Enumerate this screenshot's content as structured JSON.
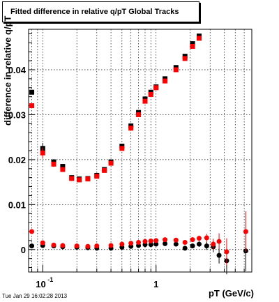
{
  "title": "Fitted difference in relative q/pT  Global Tracks",
  "footer": "Tue Jan 29 16:02:28 2013",
  "chart_data": {
    "type": "scatter",
    "title": "Fitted difference in relative q/pT  Global Tracks",
    "xlabel": "pT (GeV/c)",
    "ylabel": "difference in relative q/pT",
    "x_scale": "log",
    "xlim": [
      0.075,
      7.0
    ],
    "ylim": [
      -0.005,
      0.049
    ],
    "x_ticks": [
      {
        "value": 0.1,
        "base": "10",
        "exp": "-1"
      },
      {
        "value": 1,
        "label": "1"
      }
    ],
    "y_ticks": [
      0,
      0.01,
      0.02,
      0.03,
      0.04
    ],
    "grid": true,
    "legend": "none",
    "series": [
      {
        "color": "#000000",
        "marker": "square",
        "x": [
          0.08,
          0.1,
          0.125,
          0.15,
          0.18,
          0.21,
          0.25,
          0.3,
          0.35,
          0.4,
          0.5,
          0.6,
          0.7,
          0.8,
          0.9,
          1.0,
          1.2,
          1.5,
          1.8,
          2.1,
          2.4
        ],
        "y": [
          0.035,
          0.0225,
          0.0195,
          0.0185,
          0.016,
          0.0157,
          0.0158,
          0.0165,
          0.0178,
          0.0195,
          0.023,
          0.0275,
          0.0305,
          0.0335,
          0.035,
          0.0362,
          0.038,
          0.0405,
          0.043,
          0.0458,
          0.0475
        ],
        "yerr": [
          0.0004,
          0.0012,
          0.0006,
          0.0005,
          0.0004,
          0.0003,
          0.0003,
          0.0003,
          0.0003,
          0.0003,
          0.0003,
          0.0003,
          0.0003,
          0.0003,
          0.0003,
          0.0003,
          0.0003,
          0.0004,
          0.0004,
          0.0005,
          0.0005
        ]
      },
      {
        "color": "#ff0000",
        "marker": "square",
        "x": [
          0.08,
          0.1,
          0.125,
          0.15,
          0.18,
          0.21,
          0.25,
          0.3,
          0.35,
          0.4,
          0.5,
          0.6,
          0.7,
          0.8,
          0.9,
          1.0,
          1.2,
          1.5,
          1.8,
          2.1,
          2.4
        ],
        "y": [
          0.032,
          0.0215,
          0.019,
          0.0178,
          0.0158,
          0.0155,
          0.0157,
          0.0163,
          0.0176,
          0.0192,
          0.0225,
          0.027,
          0.03,
          0.033,
          0.0345,
          0.036,
          0.0375,
          0.04,
          0.0425,
          0.0452,
          0.047
        ],
        "yerr": [
          0.0004,
          0.0012,
          0.0006,
          0.0005,
          0.0004,
          0.0003,
          0.0003,
          0.0003,
          0.0003,
          0.0003,
          0.0003,
          0.0003,
          0.0003,
          0.0003,
          0.0003,
          0.0003,
          0.0003,
          0.0004,
          0.0004,
          0.0005,
          0.0005
        ]
      },
      {
        "color": "#000000",
        "marker": "circle",
        "x": [
          0.08,
          0.1,
          0.125,
          0.15,
          0.2,
          0.25,
          0.3,
          0.4,
          0.5,
          0.6,
          0.7,
          0.8,
          0.9,
          1.0,
          1.2,
          1.5,
          1.8,
          2.1,
          2.4,
          2.8,
          3.2,
          3.6,
          4.2,
          6.2
        ],
        "y": [
          0.0008,
          0.0009,
          0.0008,
          0.0006,
          0.0005,
          0.0004,
          0.0003,
          0.0003,
          0.0005,
          0.0007,
          0.0009,
          0.0011,
          0.0011,
          0.0012,
          0.0013,
          0.0012,
          0.0003,
          0.0008,
          0.0012,
          0.0008,
          0.0006,
          -0.0013,
          -0.0025,
          -0.0003
        ],
        "yerr": [
          0.0003,
          0.0003,
          0.0002,
          0.0002,
          0.0002,
          0.0002,
          0.0002,
          0.0002,
          0.0002,
          0.0002,
          0.0002,
          0.0002,
          0.0002,
          0.0003,
          0.0003,
          0.0003,
          0.0004,
          0.0005,
          0.0006,
          0.0009,
          0.0012,
          0.0018,
          0.003,
          0.0045
        ]
      },
      {
        "color": "#ff0000",
        "marker": "circle",
        "x": [
          0.08,
          0.1,
          0.125,
          0.15,
          0.2,
          0.25,
          0.3,
          0.4,
          0.5,
          0.6,
          0.7,
          0.8,
          0.9,
          1.0,
          1.2,
          1.5,
          1.8,
          2.1,
          2.4,
          2.8,
          3.2,
          3.6,
          4.2,
          6.2
        ],
        "y": [
          0.004,
          0.0015,
          0.001,
          0.0009,
          0.0008,
          0.0007,
          0.0008,
          0.0009,
          0.0012,
          0.0014,
          0.0016,
          0.0018,
          0.0019,
          0.002,
          0.0022,
          0.0021,
          0.0016,
          0.0022,
          0.0025,
          0.0026,
          0.0012,
          0.0018,
          -0.0005,
          0.004
        ],
        "yerr": [
          0.0003,
          0.0003,
          0.0002,
          0.0002,
          0.0002,
          0.0002,
          0.0002,
          0.0002,
          0.0002,
          0.0002,
          0.0002,
          0.0002,
          0.0002,
          0.0003,
          0.0003,
          0.0003,
          0.0004,
          0.0005,
          0.0006,
          0.0009,
          0.0012,
          0.0018,
          0.003,
          0.0045
        ]
      }
    ]
  }
}
